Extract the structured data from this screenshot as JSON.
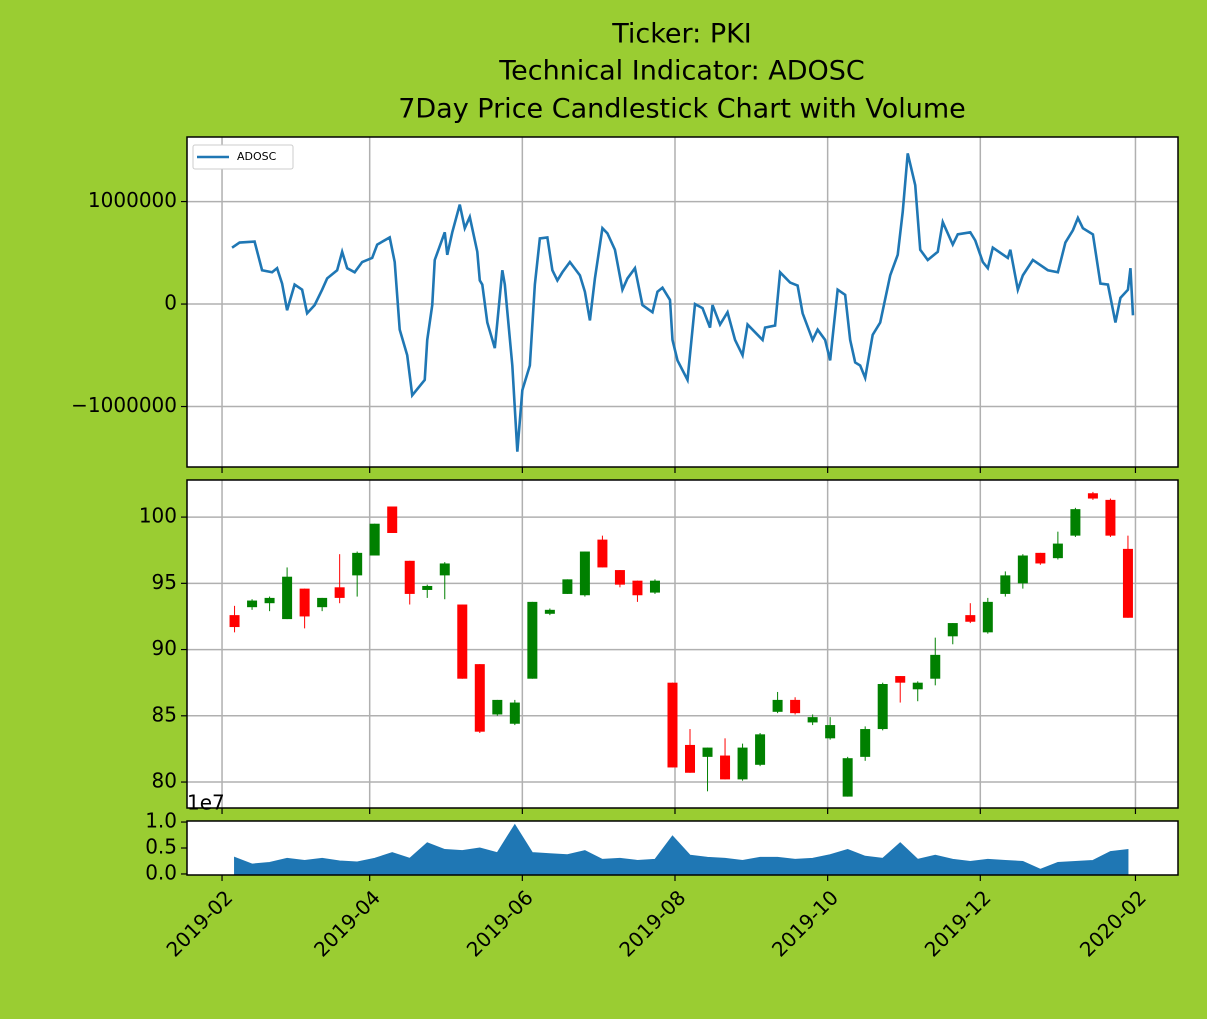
{
  "chart_data": [
    {
      "type": "line",
      "title": [
        "Ticker: PKI",
        "Technical Indicator: ADOSC",
        "7Day Price Candlestick Chart with Volume"
      ],
      "x": [
        "2019-02-05",
        "2019-02-08",
        "2019-02-14",
        "2019-02-17",
        "2019-02-21",
        "2019-02-23",
        "2019-02-25",
        "2019-02-27",
        "2019-03-02",
        "2019-03-05",
        "2019-03-07",
        "2019-03-10",
        "2019-03-13",
        "2019-03-15",
        "2019-03-19",
        "2019-03-21",
        "2019-03-23",
        "2019-03-26",
        "2019-03-29",
        "2019-04-02",
        "2019-04-04",
        "2019-04-09",
        "2019-04-11",
        "2019-04-13",
        "2019-04-16",
        "2019-04-18",
        "2019-04-23",
        "2019-04-24",
        "2019-04-26",
        "2019-04-27",
        "2019-05-01",
        "2019-05-02",
        "2019-05-04",
        "2019-05-07",
        "2019-05-09",
        "2019-05-11",
        "2019-05-14",
        "2019-05-15",
        "2019-05-16",
        "2019-05-18",
        "2019-05-21",
        "2019-05-22",
        "2019-05-24",
        "2019-05-25",
        "2019-05-28",
        "2019-05-30",
        "2019-06-01",
        "2019-06-04",
        "2019-06-06",
        "2019-06-08",
        "2019-06-11",
        "2019-06-13",
        "2019-06-15",
        "2019-06-17",
        "2019-06-20",
        "2019-06-24",
        "2019-06-26",
        "2019-06-28",
        "2019-06-30",
        "2019-07-03",
        "2019-07-05",
        "2019-07-08",
        "2019-07-11",
        "2019-07-13",
        "2019-07-16",
        "2019-07-19",
        "2019-07-23",
        "2019-07-25",
        "2019-07-27",
        "2019-07-30",
        "2019-07-31",
        "2019-08-02",
        "2019-08-06",
        "2019-08-09",
        "2019-08-12",
        "2019-08-15",
        "2019-08-16",
        "2019-08-19",
        "2019-08-22",
        "2019-08-25",
        "2019-08-28",
        "2019-08-30",
        "2019-09-03",
        "2019-09-05",
        "2019-09-06",
        "2019-09-10",
        "2019-09-12",
        "2019-09-16",
        "2019-09-19",
        "2019-09-21",
        "2019-09-25",
        "2019-09-27",
        "2019-09-30",
        "2019-10-02",
        "2019-10-05",
        "2019-10-08",
        "2019-10-10",
        "2019-10-12",
        "2019-10-14",
        "2019-10-16",
        "2019-10-19",
        "2019-10-22",
        "2019-10-26",
        "2019-10-29",
        "2019-10-31",
        "2019-11-02",
        "2019-11-05",
        "2019-11-07",
        "2019-11-10",
        "2019-11-14",
        "2019-11-16",
        "2019-11-20",
        "2019-11-22",
        "2019-11-27",
        "2019-11-29",
        "2019-12-02",
        "2019-12-04",
        "2019-12-06",
        "2019-12-12",
        "2019-12-13",
        "2019-12-16",
        "2019-12-18",
        "2019-12-22",
        "2019-12-28",
        "2020-01-01",
        "2020-01-04",
        "2020-01-07",
        "2020-01-09",
        "2020-01-11",
        "2020-01-15",
        "2020-01-18",
        "2020-01-21",
        "2020-01-24",
        "2020-01-26",
        "2020-01-29",
        "2020-01-30",
        "2020-01-31"
      ],
      "series": [
        {
          "name": "ADOSC",
          "color": "#1f77b4",
          "values": [
            550000,
            600000,
            610000,
            330000,
            310000,
            350000,
            200000,
            -60000,
            190000,
            140000,
            -90000,
            -10000,
            140000,
            250000,
            330000,
            510000,
            350000,
            310000,
            410000,
            450000,
            580000,
            650000,
            410000,
            -250000,
            -500000,
            -890000,
            -740000,
            -350000,
            -10000,
            430000,
            700000,
            480000,
            700000,
            970000,
            740000,
            850000,
            510000,
            230000,
            190000,
            -180000,
            -430000,
            -180000,
            330000,
            190000,
            -600000,
            -1440000,
            -840000,
            -600000,
            190000,
            640000,
            650000,
            330000,
            230000,
            310000,
            410000,
            280000,
            120000,
            -160000,
            250000,
            740000,
            690000,
            530000,
            140000,
            250000,
            350000,
            -10000,
            -80000,
            120000,
            160000,
            40000,
            -350000,
            -550000,
            -740000,
            0,
            -40000,
            -230000,
            -10000,
            -200000,
            -80000,
            -350000,
            -500000,
            -200000,
            -300000,
            -350000,
            -230000,
            -210000,
            310000,
            210000,
            180000,
            -90000,
            -350000,
            -250000,
            -350000,
            -550000,
            140000,
            90000,
            -350000,
            -570000,
            -600000,
            -720000,
            -300000,
            -180000,
            280000,
            480000,
            900000,
            1470000,
            1160000,
            530000,
            430000,
            510000,
            800000,
            580000,
            680000,
            700000,
            620000,
            410000,
            350000,
            550000,
            450000,
            530000,
            140000,
            280000,
            430000,
            330000,
            310000,
            600000,
            720000,
            840000,
            740000,
            680000,
            200000,
            190000,
            -180000,
            60000,
            140000,
            350000,
            -110000
          ]
        }
      ],
      "legend": "upper left",
      "xlim": [
        "2019-01-18",
        "2020-02-18"
      ],
      "xticks": [
        "2019-02",
        "2019-04",
        "2019-06",
        "2019-08",
        "2019-10",
        "2019-12",
        "2020-02"
      ],
      "ylim": [
        -1590000,
        1630000
      ],
      "yticks": [
        {
          "value": -1000000,
          "label": "−1000000"
        },
        0,
        1000000
      ],
      "grid": true
    },
    {
      "type": "candlestick",
      "x": [
        "2019-02-06",
        "2019-02-13",
        "2019-02-20",
        "2019-02-27",
        "2019-03-06",
        "2019-03-13",
        "2019-03-20",
        "2019-03-27",
        "2019-04-03",
        "2019-04-10",
        "2019-04-17",
        "2019-04-24",
        "2019-05-01",
        "2019-05-08",
        "2019-05-15",
        "2019-05-22",
        "2019-05-29",
        "2019-06-05",
        "2019-06-12",
        "2019-06-19",
        "2019-06-26",
        "2019-07-03",
        "2019-07-10",
        "2019-07-17",
        "2019-07-24",
        "2019-07-31",
        "2019-08-07",
        "2019-08-14",
        "2019-08-21",
        "2019-08-28",
        "2019-09-04",
        "2019-09-11",
        "2019-09-18",
        "2019-09-25",
        "2019-10-02",
        "2019-10-09",
        "2019-10-16",
        "2019-10-23",
        "2019-10-30",
        "2019-11-06",
        "2019-11-13",
        "2019-11-20",
        "2019-11-27",
        "2019-12-04",
        "2019-12-11",
        "2019-12-18",
        "2019-12-25",
        "2020-01-01",
        "2020-01-08",
        "2020-01-15",
        "2020-01-22",
        "2020-01-29"
      ],
      "open": [
        92.6,
        93.2,
        93.5,
        92.3,
        94.6,
        93.2,
        94.7,
        95.6,
        97.1,
        100.8,
        96.7,
        94.5,
        95.6,
        93.4,
        88.9,
        85.1,
        84.4,
        87.8,
        92.7,
        94.2,
        94.1,
        98.3,
        96.0,
        95.2,
        94.3,
        87.5,
        82.8,
        81.9,
        82.0,
        80.2,
        81.3,
        85.3,
        86.2,
        84.5,
        83.3,
        78.9,
        81.9,
        84.0,
        88.0,
        87.0,
        87.8,
        91.0,
        92.6,
        91.3,
        94.2,
        95.0,
        97.3,
        96.9,
        98.6,
        101.8,
        101.3,
        97.6
      ],
      "high": [
        93.3,
        93.8,
        94.0,
        96.2,
        94.6,
        93.9,
        97.2,
        97.4,
        99.5,
        100.8,
        96.7,
        94.9,
        96.6,
        93.4,
        88.9,
        86.2,
        86.2,
        93.6,
        93.1,
        95.3,
        97.4,
        98.6,
        96.0,
        95.2,
        95.3,
        87.5,
        84.0,
        82.6,
        83.3,
        82.9,
        83.7,
        86.8,
        86.4,
        85.1,
        84.9,
        81.9,
        84.2,
        87.5,
        88.0,
        87.6,
        90.9,
        92.0,
        93.5,
        93.9,
        95.9,
        97.2,
        97.3,
        98.9,
        100.7,
        101.9,
        101.4,
        98.6
      ],
      "low": [
        91.3,
        93.0,
        92.9,
        92.3,
        91.6,
        92.9,
        93.5,
        94.0,
        97.1,
        98.8,
        93.4,
        93.9,
        93.8,
        87.8,
        83.7,
        85.0,
        84.3,
        87.8,
        92.6,
        94.2,
        94.0,
        96.2,
        94.7,
        93.6,
        94.2,
        81.1,
        80.7,
        79.3,
        80.2,
        80.1,
        81.2,
        85.2,
        85.1,
        84.3,
        83.2,
        78.9,
        81.6,
        83.9,
        86.0,
        86.1,
        87.3,
        90.4,
        92.0,
        91.2,
        94.0,
        94.6,
        96.4,
        96.8,
        98.5,
        101.3,
        98.5,
        92.4
      ],
      "close": [
        91.7,
        93.7,
        93.9,
        95.5,
        92.5,
        93.9,
        93.9,
        97.3,
        99.5,
        98.8,
        94.2,
        94.8,
        96.5,
        87.8,
        83.8,
        86.2,
        86.0,
        93.6,
        93.0,
        95.3,
        97.4,
        96.2,
        94.9,
        94.1,
        95.2,
        81.1,
        80.7,
        82.6,
        80.2,
        82.6,
        83.6,
        86.2,
        85.2,
        84.9,
        84.3,
        81.8,
        84.0,
        87.4,
        87.5,
        87.5,
        89.6,
        92.0,
        92.1,
        93.6,
        95.6,
        97.1,
        96.5,
        98.0,
        100.6,
        101.4,
        98.6,
        92.4
      ],
      "up_color": "#008000",
      "down_color": "#ff0000",
      "xlim": [
        "2019-01-18",
        "2020-02-18"
      ],
      "xticks": [
        "2019-02",
        "2019-04",
        "2019-06",
        "2019-08",
        "2019-10",
        "2019-12",
        "2020-02"
      ],
      "ylim": [
        78.04,
        102.8
      ],
      "yticks": [
        80,
        85,
        90,
        95,
        100
      ],
      "grid": true
    },
    {
      "type": "area",
      "offset_label": "1e7",
      "x": [
        "2019-02-06",
        "2019-02-13",
        "2019-02-20",
        "2019-02-27",
        "2019-03-06",
        "2019-03-13",
        "2019-03-20",
        "2019-03-27",
        "2019-04-03",
        "2019-04-10",
        "2019-04-17",
        "2019-04-24",
        "2019-05-01",
        "2019-05-08",
        "2019-05-15",
        "2019-05-22",
        "2019-05-29",
        "2019-06-05",
        "2019-06-12",
        "2019-06-19",
        "2019-06-26",
        "2019-07-03",
        "2019-07-10",
        "2019-07-17",
        "2019-07-24",
        "2019-07-31",
        "2019-08-07",
        "2019-08-14",
        "2019-08-21",
        "2019-08-28",
        "2019-09-04",
        "2019-09-11",
        "2019-09-18",
        "2019-09-25",
        "2019-10-02",
        "2019-10-09",
        "2019-10-16",
        "2019-10-23",
        "2019-10-30",
        "2019-11-06",
        "2019-11-13",
        "2019-11-20",
        "2019-11-27",
        "2019-12-04",
        "2019-12-11",
        "2019-12-18",
        "2019-12-25",
        "2020-01-01",
        "2020-01-08",
        "2020-01-15",
        "2020-01-22",
        "2020-01-29"
      ],
      "values": [
        0.32,
        0.19,
        0.22,
        0.3,
        0.26,
        0.3,
        0.25,
        0.23,
        0.3,
        0.41,
        0.3,
        0.6,
        0.47,
        0.45,
        0.5,
        0.41,
        0.95,
        0.41,
        0.39,
        0.37,
        0.45,
        0.28,
        0.3,
        0.26,
        0.28,
        0.73,
        0.36,
        0.32,
        0.3,
        0.26,
        0.32,
        0.32,
        0.28,
        0.3,
        0.37,
        0.47,
        0.34,
        0.3,
        0.6,
        0.28,
        0.36,
        0.28,
        0.24,
        0.28,
        0.26,
        0.24,
        0.09,
        0.22,
        0.24,
        0.26,
        0.43,
        0.47
      ],
      "color": "#1f77b4",
      "xlim": [
        "2019-01-18",
        "2020-02-18"
      ],
      "xticks": [
        "2019-02",
        "2019-04",
        "2019-06",
        "2019-08",
        "2019-10",
        "2019-12",
        "2020-02"
      ],
      "ylim": [
        -0.02,
        1.02
      ],
      "yticks": [
        {
          "value": 0,
          "label": "0.0"
        },
        0.5,
        {
          "value": 1,
          "label": "1.0"
        }
      ]
    }
  ]
}
